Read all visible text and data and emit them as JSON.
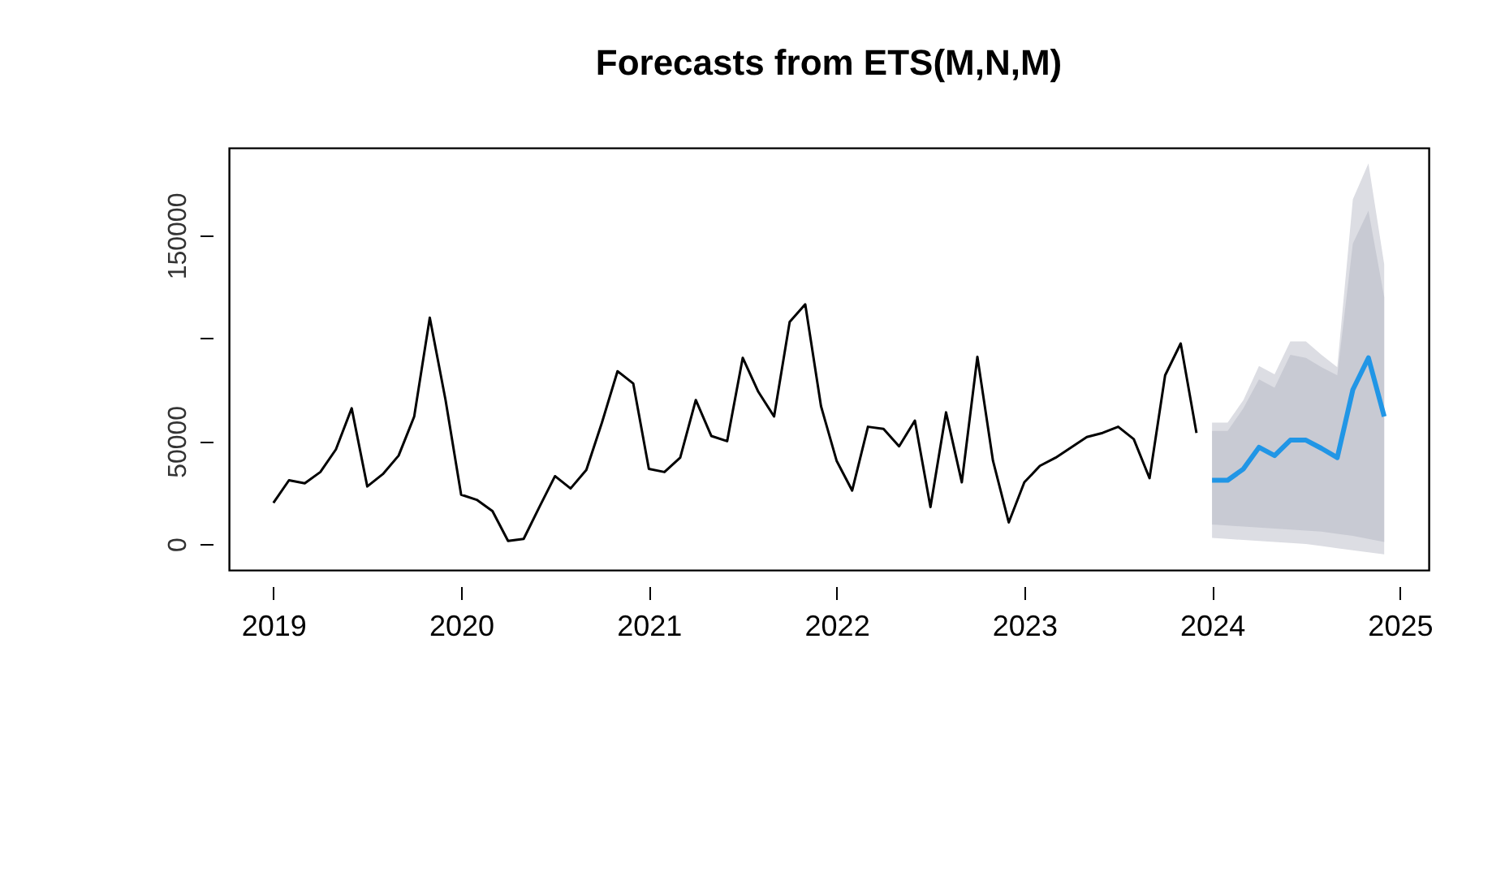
{
  "chart_data": {
    "type": "line",
    "title": "Forecasts from ETS(M,N,M)",
    "xlim": [
      2018.763,
      2025.154
    ],
    "xticks": [
      2019,
      2020,
      2021,
      2022,
      2023,
      2024,
      2025
    ],
    "ylim": [
      -12600,
      192600
    ],
    "yticks": [
      0,
      50000,
      {
        "value": 100000,
        "label": null
      },
      150000
    ],
    "grid": false,
    "marker": "none",
    "line_style": "solid",
    "series": [
      {
        "color": "#000000",
        "x": [
          2019.0,
          2019.083,
          2019.167,
          2019.25,
          2019.333,
          2019.417,
          2019.5,
          2019.583,
          2019.667,
          2019.75,
          2019.833,
          2019.917,
          2020.0,
          2020.083,
          2020.167,
          2020.25,
          2020.333,
          2020.417,
          2020.5,
          2020.583,
          2020.667,
          2020.75,
          2020.833,
          2020.917,
          2021.0,
          2021.083,
          2021.167,
          2021.25,
          2021.333,
          2021.417,
          2021.5,
          2021.583,
          2021.667,
          2021.75,
          2021.833,
          2021.917,
          2022.0,
          2022.083,
          2022.167,
          2022.25,
          2022.333,
          2022.417,
          2022.5,
          2022.583,
          2022.667,
          2022.75,
          2022.833,
          2022.917,
          2023.0,
          2023.083,
          2023.167,
          2023.25,
          2023.333,
          2023.417,
          2023.5,
          2023.583,
          2023.667,
          2023.75,
          2023.833,
          2023.917
        ],
        "values": [
          20000,
          31000,
          29500,
          35000,
          46000,
          66000,
          28000,
          34000,
          43000,
          62000,
          110000,
          70000,
          24000,
          21500,
          16000,
          1500,
          2500,
          18000,
          33000,
          27000,
          36000,
          59000,
          84000,
          78000,
          36500,
          35000,
          42000,
          70000,
          52500,
          50000,
          90500,
          74000,
          62000,
          108000,
          116500,
          67000,
          40500,
          26000,
          57000,
          56000,
          47500,
          60000,
          18000,
          64000,
          30000,
          91000,
          40500,
          10500,
          30000,
          38000,
          42000,
          47000,
          52000,
          54000,
          57000,
          51000,
          32000,
          82000,
          97500,
          54000
        ]
      },
      {
        "color": "#2196e6",
        "x": [
          2024.0,
          2024.083,
          2024.167,
          2024.25,
          2024.333,
          2024.417,
          2024.5,
          2024.583,
          2024.667,
          2024.75,
          2024.833,
          2024.917
        ],
        "values": [
          31000,
          31000,
          36500,
          47000,
          43000,
          50500,
          50500,
          46500,
          42000,
          75000,
          90500,
          62000
        ]
      },
      {
        "color": "#c8cad3",
        "x": [
          2024.0,
          2024.083,
          2024.167,
          2024.25,
          2024.333,
          2024.417,
          2024.5,
          2024.583,
          2024.667,
          2024.75,
          2024.833,
          2024.917
        ],
        "values": [
          null,
          null,
          null,
          null,
          null,
          null,
          null,
          null,
          null,
          null,
          null,
          null
        ],
        "lower": [
          9500,
          9000,
          8500,
          8000,
          7500,
          7000,
          6500,
          6000,
          5000,
          4000,
          2500,
          1000
        ],
        "upper": [
          55000,
          55000,
          66000,
          80000,
          76000,
          92000,
          90500,
          86000,
          82000,
          146000,
          162000,
          120000
        ]
      },
      {
        "color": "#dcdde3",
        "x": [
          2024.0,
          2024.083,
          2024.167,
          2024.25,
          2024.333,
          2024.417,
          2024.5,
          2024.583,
          2024.667,
          2024.75,
          2024.833,
          2024.917
        ],
        "values": [
          null,
          null,
          null,
          null,
          null,
          null,
          null,
          null,
          null,
          null,
          null,
          null
        ],
        "lower": [
          3000,
          2500,
          2000,
          1500,
          1000,
          500,
          0,
          -1000,
          -2000,
          -3000,
          -4000,
          -5000
        ],
        "upper": [
          59000,
          59000,
          70000,
          86500,
          82500,
          98500,
          98500,
          92000,
          86000,
          167500,
          185000,
          136000
        ]
      }
    ]
  }
}
